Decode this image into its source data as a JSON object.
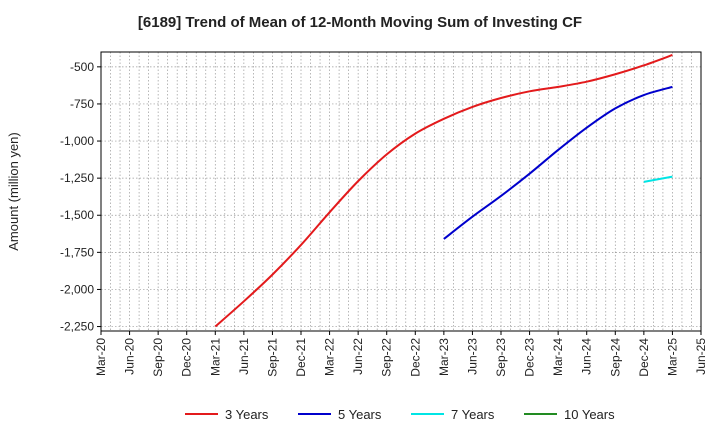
{
  "chart_data": {
    "type": "line",
    "title": "[6189]  Trend of Mean of 12-Month Moving Sum of Investing CF",
    "ylabel": "Amount (million yen)",
    "xlabel": "",
    "ylim": [
      -2280,
      -400
    ],
    "yticks": [
      -500,
      -750,
      -1000,
      -1250,
      -1500,
      -1750,
      -2000,
      -2250
    ],
    "ytick_labels": [
      "-500",
      "-750",
      "-1,000",
      "-1,250",
      "-1,500",
      "-1,750",
      "-2,000",
      "-2,250"
    ],
    "xticks": [
      "Mar-20",
      "Jun-20",
      "Sep-20",
      "Dec-20",
      "Mar-21",
      "Jun-21",
      "Sep-21",
      "Dec-21",
      "Mar-22",
      "Jun-22",
      "Sep-22",
      "Dec-22",
      "Mar-23",
      "Jun-23",
      "Sep-23",
      "Dec-23",
      "Mar-24",
      "Jun-24",
      "Sep-24",
      "Dec-24",
      "Mar-25",
      "Jun-25"
    ],
    "grid": true,
    "legend_position": "bottom",
    "series": [
      {
        "name": "3 Years",
        "color": "#e31a1c",
        "x": [
          "Mar-21",
          "Jun-21",
          "Sep-21",
          "Dec-21",
          "Mar-22",
          "Jun-22",
          "Sep-22",
          "Dec-22",
          "Mar-23",
          "Jun-23",
          "Sep-23",
          "Dec-23",
          "Mar-24",
          "Jun-24",
          "Sep-24",
          "Dec-24",
          "Mar-25"
        ],
        "values": [
          -2250,
          -2080,
          -1900,
          -1700,
          -1480,
          -1270,
          -1090,
          -950,
          -850,
          -770,
          -710,
          -665,
          -635,
          -600,
          -550,
          -490,
          -420
        ]
      },
      {
        "name": "5 Years",
        "color": "#0000cc",
        "x": [
          "Mar-23",
          "Jun-23",
          "Sep-23",
          "Dec-23",
          "Mar-24",
          "Jun-24",
          "Sep-24",
          "Dec-24",
          "Mar-25"
        ],
        "values": [
          -1660,
          -1510,
          -1370,
          -1220,
          -1060,
          -910,
          -780,
          -690,
          -635
        ]
      },
      {
        "name": "7 Years",
        "color": "#00e5e5",
        "x": [
          "Dec-24",
          "Mar-25"
        ],
        "values": [
          -1275,
          -1240
        ]
      },
      {
        "name": "10 Years",
        "color": "#228b22",
        "x": [],
        "values": []
      }
    ]
  }
}
